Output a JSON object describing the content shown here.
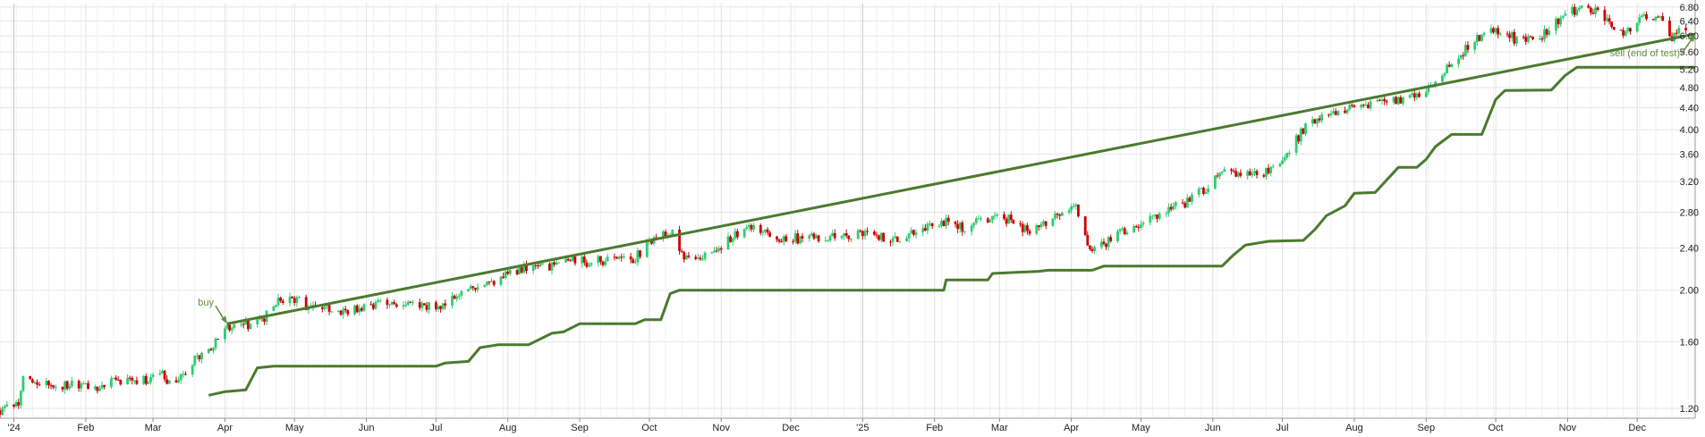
{
  "chart_data": {
    "type": "candlestick",
    "y_scale": "log",
    "ylim": [
      1.15,
      6.9
    ],
    "y_ticks": [
      "1.20",
      "1.60",
      "2.00",
      "2.40",
      "2.80",
      "3.20",
      "3.60",
      "4.00",
      "4.40",
      "4.80",
      "5.20",
      "5.60",
      "6.00",
      "6.40",
      "6.80"
    ],
    "y_tick_values": [
      1.2,
      1.6,
      2.0,
      2.4,
      2.8,
      3.2,
      3.6,
      4.0,
      4.4,
      4.8,
      5.2,
      5.6,
      6.0,
      6.4,
      6.8
    ],
    "x_range": [
      "2023-12-26",
      "2025-12-26"
    ],
    "x_ticks": [
      {
        "label": "'24",
        "date": "2024-01-01"
      },
      {
        "label": "Feb",
        "date": "2024-02-01"
      },
      {
        "label": "Mar",
        "date": "2024-03-01"
      },
      {
        "label": "Apr",
        "date": "2024-04-01"
      },
      {
        "label": "May",
        "date": "2024-05-01"
      },
      {
        "label": "Jun",
        "date": "2024-06-01"
      },
      {
        "label": "Jul",
        "date": "2024-07-01"
      },
      {
        "label": "Aug",
        "date": "2024-08-01"
      },
      {
        "label": "Sep",
        "date": "2024-09-01"
      },
      {
        "label": "Oct",
        "date": "2024-10-01"
      },
      {
        "label": "Nov",
        "date": "2024-11-01"
      },
      {
        "label": "Dec",
        "date": "2024-12-01"
      },
      {
        "label": "'25",
        "date": "2025-01-01"
      },
      {
        "label": "Feb",
        "date": "2025-02-01"
      },
      {
        "label": "Mar",
        "date": "2025-03-01"
      },
      {
        "label": "Apr",
        "date": "2025-04-01"
      },
      {
        "label": "May",
        "date": "2025-05-01"
      },
      {
        "label": "Jun",
        "date": "2025-06-01"
      },
      {
        "label": "Jul",
        "date": "2025-07-01"
      },
      {
        "label": "Aug",
        "date": "2025-08-01"
      },
      {
        "label": "Sep",
        "date": "2025-09-01"
      },
      {
        "label": "Oct",
        "date": "2025-10-01"
      },
      {
        "label": "Nov",
        "date": "2025-11-01"
      },
      {
        "label": "Dec",
        "date": "2025-12-01"
      }
    ],
    "price_path": [
      [
        "2023-12-26",
        1.19
      ],
      [
        "2024-01-03",
        1.23
      ],
      [
        "2024-01-05",
        1.36
      ],
      [
        "2024-01-15",
        1.33
      ],
      [
        "2024-01-25",
        1.33
      ],
      [
        "2024-02-05",
        1.32
      ],
      [
        "2024-02-20",
        1.36
      ],
      [
        "2024-03-01",
        1.36
      ],
      [
        "2024-03-05",
        1.42
      ],
      [
        "2024-03-07",
        1.32
      ],
      [
        "2024-03-12",
        1.35
      ],
      [
        "2024-03-18",
        1.47
      ],
      [
        "2024-03-26",
        1.56
      ],
      [
        "2024-04-02",
        1.7
      ],
      [
        "2024-04-12",
        1.72
      ],
      [
        "2024-04-20",
        1.8
      ],
      [
        "2024-04-25",
        1.93
      ],
      [
        "2024-05-01",
        1.92
      ],
      [
        "2024-05-10",
        1.84
      ],
      [
        "2024-05-20",
        1.83
      ],
      [
        "2024-06-01",
        1.85
      ],
      [
        "2024-06-10",
        1.9
      ],
      [
        "2024-06-25",
        1.86
      ],
      [
        "2024-07-05",
        1.87
      ],
      [
        "2024-07-12",
        1.97
      ],
      [
        "2024-07-25",
        2.05
      ],
      [
        "2024-08-05",
        2.18
      ],
      [
        "2024-08-15",
        2.2
      ],
      [
        "2024-08-25",
        2.27
      ],
      [
        "2024-09-05",
        2.26
      ],
      [
        "2024-09-15",
        2.28
      ],
      [
        "2024-09-25",
        2.3
      ],
      [
        "2024-10-01",
        2.44
      ],
      [
        "2024-10-05",
        2.58
      ],
      [
        "2024-10-12",
        2.55
      ],
      [
        "2024-10-15",
        2.32
      ],
      [
        "2024-10-25",
        2.33
      ],
      [
        "2024-11-05",
        2.5
      ],
      [
        "2024-11-15",
        2.62
      ],
      [
        "2024-11-25",
        2.5
      ],
      [
        "2024-12-10",
        2.5
      ],
      [
        "2024-12-25",
        2.52
      ],
      [
        "2025-01-05",
        2.55
      ],
      [
        "2025-01-15",
        2.48
      ],
      [
        "2025-01-25",
        2.6
      ],
      [
        "2025-02-05",
        2.68
      ],
      [
        "2025-02-15",
        2.62
      ],
      [
        "2025-02-25",
        2.74
      ],
      [
        "2025-03-05",
        2.72
      ],
      [
        "2025-03-15",
        2.55
      ],
      [
        "2025-03-25",
        2.8
      ],
      [
        "2025-04-03",
        2.85
      ],
      [
        "2025-04-08",
        2.4
      ],
      [
        "2025-04-15",
        2.45
      ],
      [
        "2025-04-25",
        2.6
      ],
      [
        "2025-05-05",
        2.75
      ],
      [
        "2025-05-20",
        2.9
      ],
      [
        "2025-06-05",
        3.3
      ],
      [
        "2025-06-20",
        3.28
      ],
      [
        "2025-07-01",
        3.5
      ],
      [
        "2025-07-10",
        4.0
      ],
      [
        "2025-07-20",
        4.3
      ],
      [
        "2025-08-01",
        4.4
      ],
      [
        "2025-08-15",
        4.5
      ],
      [
        "2025-08-25",
        4.6
      ],
      [
        "2025-09-01",
        4.7
      ],
      [
        "2025-09-10",
        5.2
      ],
      [
        "2025-09-20",
        5.8
      ],
      [
        "2025-10-01",
        6.2
      ],
      [
        "2025-10-10",
        5.9
      ],
      [
        "2025-10-20",
        5.95
      ],
      [
        "2025-11-01",
        6.7
      ],
      [
        "2025-11-10",
        6.75
      ],
      [
        "2025-11-15",
        6.6
      ],
      [
        "2025-11-25",
        6.0
      ],
      [
        "2025-12-05",
        6.6
      ],
      [
        "2025-12-12",
        6.4
      ],
      [
        "2025-12-16",
        6.0
      ],
      [
        "2025-12-22",
        6.2
      ]
    ],
    "stop_line": [
      [
        "2024-03-25",
        1.27
      ],
      [
        "2024-04-01",
        1.29
      ],
      [
        "2024-04-10",
        1.3
      ],
      [
        "2024-04-15",
        1.43
      ],
      [
        "2024-04-22",
        1.44
      ],
      [
        "2024-07-01",
        1.44
      ],
      [
        "2024-07-05",
        1.46
      ],
      [
        "2024-07-15",
        1.47
      ],
      [
        "2024-07-20",
        1.56
      ],
      [
        "2024-07-28",
        1.58
      ],
      [
        "2024-08-10",
        1.58
      ],
      [
        "2024-08-20",
        1.66
      ],
      [
        "2024-08-25",
        1.67
      ],
      [
        "2024-09-01",
        1.73
      ],
      [
        "2024-09-25",
        1.73
      ],
      [
        "2024-09-29",
        1.76
      ],
      [
        "2024-10-06",
        1.76
      ],
      [
        "2024-10-10",
        1.97
      ],
      [
        "2024-10-14",
        2.0
      ],
      [
        "2024-12-31",
        2.0
      ],
      [
        "2025-02-05",
        2.0
      ],
      [
        "2025-02-06",
        2.09
      ],
      [
        "2025-02-24",
        2.09
      ],
      [
        "2025-02-26",
        2.15
      ],
      [
        "2025-03-18",
        2.17
      ],
      [
        "2025-03-22",
        2.18
      ],
      [
        "2025-04-10",
        2.18
      ],
      [
        "2025-04-15",
        2.22
      ],
      [
        "2025-05-10",
        2.22
      ],
      [
        "2025-06-05",
        2.22
      ],
      [
        "2025-06-10",
        2.33
      ],
      [
        "2025-06-15",
        2.43
      ],
      [
        "2025-06-25",
        2.47
      ],
      [
        "2025-07-10",
        2.48
      ],
      [
        "2025-07-15",
        2.6
      ],
      [
        "2025-07-20",
        2.76
      ],
      [
        "2025-07-28",
        2.88
      ],
      [
        "2025-08-01",
        3.04
      ],
      [
        "2025-08-10",
        3.05
      ],
      [
        "2025-08-20",
        3.4
      ],
      [
        "2025-08-28",
        3.4
      ],
      [
        "2025-09-01",
        3.52
      ],
      [
        "2025-09-05",
        3.72
      ],
      [
        "2025-09-12",
        3.92
      ],
      [
        "2025-09-25",
        3.92
      ],
      [
        "2025-10-01",
        4.56
      ],
      [
        "2025-10-05",
        4.74
      ],
      [
        "2025-10-25",
        4.75
      ],
      [
        "2025-10-31",
        5.06
      ],
      [
        "2025-11-05",
        5.24
      ],
      [
        "2025-12-26",
        5.24
      ]
    ],
    "trendline": {
      "from": [
        "2024-04-02",
        1.73
      ],
      "to": [
        "2025-12-26",
        6.05
      ]
    },
    "annotations": [
      {
        "text": "buy",
        "date": "2024-04-02",
        "value": 1.73
      },
      {
        "text": "sell (end of test)",
        "date": "2025-12-26",
        "value": 6.05
      }
    ],
    "colors": {
      "up": "#2ecc71",
      "down": "#cc0000",
      "trend": "#4b7a2e",
      "stop": "#4b7a2e",
      "annotation": "#5f8f3f",
      "grid": "#e6e6e6"
    },
    "grid": true
  }
}
